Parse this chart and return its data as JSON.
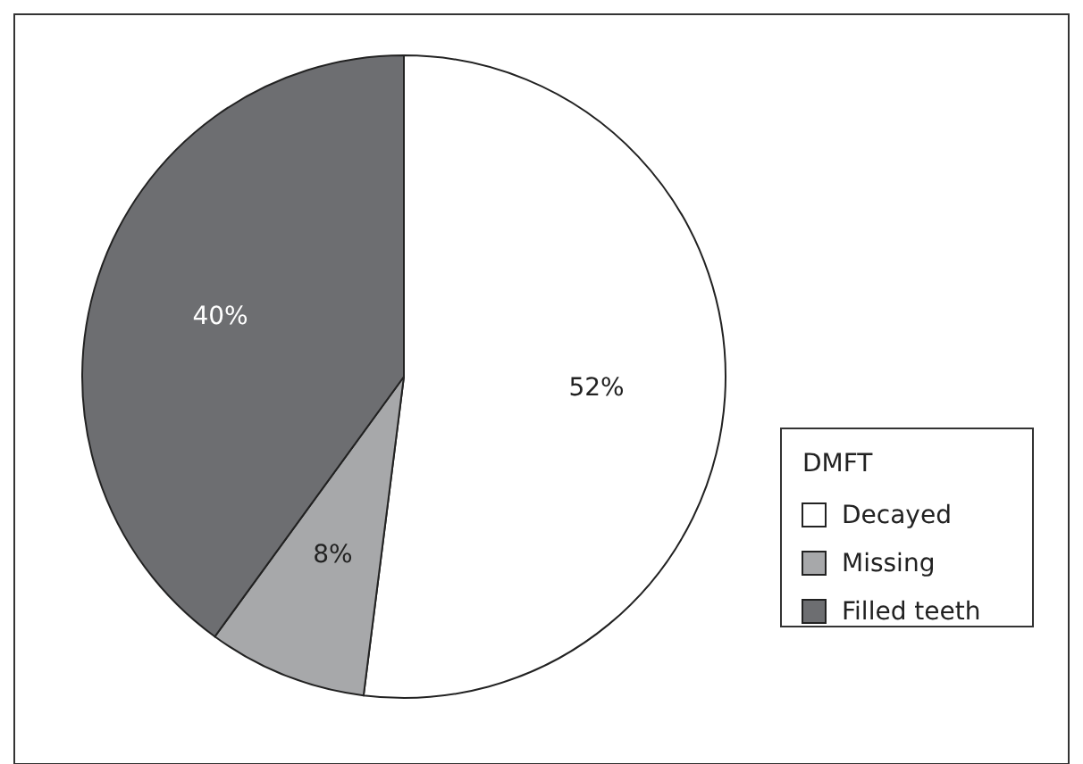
{
  "chart_data": {
    "type": "pie",
    "legend_title": "DMFT",
    "categories": [
      "Decayed",
      "Missing",
      "Filled teeth"
    ],
    "values": [
      52,
      8,
      40
    ],
    "value_labels": [
      "52%",
      "8%",
      "40%"
    ],
    "colors": [
      "#ffffff",
      "#a7a8aa",
      "#6d6e71"
    ],
    "legend": "right"
  }
}
